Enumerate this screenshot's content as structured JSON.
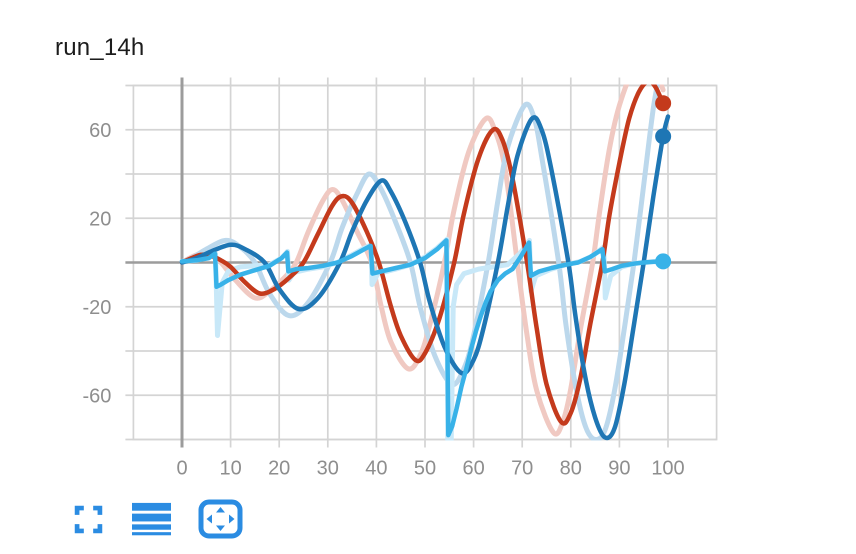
{
  "card": {
    "title": "run_14h",
    "background": "#ffffff"
  },
  "toolbar": {
    "icon_color": "#2b8ce2",
    "buttons": [
      {
        "label": "fullscreen",
        "icon": "fullscreen-icon"
      },
      {
        "label": "raw-data",
        "icon": "data-rows-icon"
      },
      {
        "label": "pan-zoom",
        "icon": "pan-arrows-icon"
      }
    ]
  },
  "chart_data": {
    "type": "line",
    "title": "run_14h",
    "xlabel": "",
    "ylabel": "",
    "x_range": [
      -10,
      110
    ],
    "y_range": [
      -80,
      80
    ],
    "x_ticks": [
      0,
      10,
      20,
      30,
      40,
      50,
      60,
      70,
      80,
      90,
      100
    ],
    "y_gridlines": [
      -80,
      -60,
      -40,
      -20,
      0,
      20,
      40,
      60,
      80
    ],
    "y_tick_labels": [
      {
        "value": 60,
        "label": "60"
      },
      {
        "value": 20,
        "label": "20"
      },
      {
        "value": -20,
        "label": "-20"
      },
      {
        "value": -60,
        "label": "-60"
      }
    ],
    "grid": true,
    "legend_position": "none",
    "styles": {
      "grid_color": "#d4d4d4",
      "axis_zero_color": "#9c9c9c",
      "label_color": "#8e8e8e",
      "label_size": 20
    },
    "series": [
      {
        "name": "red-raw",
        "role": "raw",
        "color": "#f0c9c2",
        "width": 5,
        "style": "smooth",
        "points": [
          [
            0,
            0
          ],
          [
            2,
            2.5
          ],
          [
            4,
            4
          ],
          [
            6,
            3
          ],
          [
            8,
            0
          ],
          [
            11,
            -8
          ],
          [
            15,
            -16
          ],
          [
            18,
            -13
          ],
          [
            21,
            -7
          ],
          [
            23.5,
            0
          ],
          [
            26,
            14
          ],
          [
            29,
            28
          ],
          [
            31,
            33
          ],
          [
            33,
            28
          ],
          [
            36,
            14
          ],
          [
            39,
            0
          ],
          [
            41,
            -20
          ],
          [
            43,
            -36
          ],
          [
            46.5,
            -48
          ],
          [
            49,
            -42
          ],
          [
            51,
            -28
          ],
          [
            54,
            0
          ],
          [
            56,
            24
          ],
          [
            59,
            50
          ],
          [
            62.5,
            65
          ],
          [
            64.5,
            59
          ],
          [
            66.5,
            42
          ],
          [
            69,
            0
          ],
          [
            71,
            -33
          ],
          [
            73,
            -58
          ],
          [
            76.5,
            -77
          ],
          [
            78.5,
            -71
          ],
          [
            80,
            -57
          ],
          [
            82,
            -30
          ],
          [
            84.5,
            0
          ],
          [
            86,
            24
          ],
          [
            88,
            52
          ],
          [
            90,
            71
          ],
          [
            93,
            88
          ],
          [
            95.5,
            93
          ],
          [
            97.5,
            86
          ],
          [
            99,
            78
          ]
        ]
      },
      {
        "name": "blue-raw",
        "role": "raw",
        "color": "#bcd8ec",
        "width": 5,
        "style": "smooth",
        "points": [
          [
            0,
            0
          ],
          [
            2,
            2
          ],
          [
            5,
            6
          ],
          [
            9,
            10
          ],
          [
            12,
            7
          ],
          [
            15,
            0
          ],
          [
            18,
            -14
          ],
          [
            22,
            -24
          ],
          [
            26,
            -18
          ],
          [
            30.5,
            0
          ],
          [
            33,
            16
          ],
          [
            36,
            31
          ],
          [
            38.5,
            40
          ],
          [
            41,
            33
          ],
          [
            44,
            18
          ],
          [
            47,
            0
          ],
          [
            49,
            -20
          ],
          [
            52,
            -42
          ],
          [
            55.5,
            -55
          ],
          [
            58,
            -48
          ],
          [
            60,
            -33
          ],
          [
            63,
            0
          ],
          [
            65,
            28
          ],
          [
            67,
            52
          ],
          [
            70.5,
            71
          ],
          [
            72.5,
            65
          ],
          [
            74,
            48
          ],
          [
            77.5,
            0
          ],
          [
            79,
            -28
          ],
          [
            81,
            -56
          ],
          [
            83,
            -74
          ],
          [
            85,
            -80
          ],
          [
            87,
            -76
          ],
          [
            89,
            -58
          ],
          [
            91,
            -30
          ],
          [
            93,
            0
          ],
          [
            95,
            35
          ],
          [
            97,
            70
          ],
          [
            98.5,
            88
          ]
        ]
      },
      {
        "name": "cyan-raw",
        "role": "raw",
        "color": "#c8e8f8",
        "width": 5,
        "style": "linear",
        "points": [
          [
            0,
            0.5
          ],
          [
            3,
            1
          ],
          [
            5.5,
            2.5
          ],
          [
            6.9,
            4
          ],
          [
            7.3,
            -33
          ],
          [
            8.3,
            -9
          ],
          [
            9.5,
            -4
          ],
          [
            12,
            -2
          ],
          [
            15,
            -1.5
          ],
          [
            18,
            -1
          ],
          [
            20.5,
            2
          ],
          [
            21.7,
            5
          ],
          [
            22,
            -8
          ],
          [
            23,
            -4.5
          ],
          [
            26,
            -3
          ],
          [
            29,
            -2
          ],
          [
            32,
            0
          ],
          [
            35,
            3.5
          ],
          [
            37.5,
            6.5
          ],
          [
            38.9,
            8
          ],
          [
            39.1,
            -10
          ],
          [
            40.3,
            -5
          ],
          [
            44,
            -3
          ],
          [
            47,
            -1
          ],
          [
            50,
            2.5
          ],
          [
            52.5,
            6.5
          ],
          [
            54.5,
            10.5
          ],
          [
            54.7,
            -81
          ],
          [
            55.4,
            -81
          ],
          [
            55.8,
            -20
          ],
          [
            56.5,
            -10
          ],
          [
            58,
            -5
          ],
          [
            61,
            -3
          ],
          [
            64,
            -2
          ],
          [
            67,
            -1
          ],
          [
            69.5,
            4
          ],
          [
            71.5,
            10
          ],
          [
            71.8,
            -13
          ],
          [
            72.8,
            -6
          ],
          [
            76,
            -3
          ],
          [
            79,
            -1
          ],
          [
            82,
            0.5
          ],
          [
            84.5,
            3
          ],
          [
            86.8,
            7
          ],
          [
            87.1,
            -16
          ],
          [
            88.2,
            -6
          ],
          [
            90.5,
            -2
          ],
          [
            93,
            -0.5
          ],
          [
            95,
            0
          ],
          [
            97,
            0.3
          ],
          [
            99,
            0.5
          ]
        ]
      },
      {
        "name": "red-smoothed",
        "role": "smoothed",
        "color": "#c43a1c",
        "width": 4.5,
        "style": "smooth",
        "end_marker": {
          "x": 99,
          "y": 72,
          "r": 8
        },
        "points": [
          [
            0,
            0
          ],
          [
            2,
            2
          ],
          [
            4,
            3.5
          ],
          [
            6,
            3
          ],
          [
            8,
            1
          ],
          [
            10,
            -2
          ],
          [
            13,
            -9
          ],
          [
            16,
            -14
          ],
          [
            19,
            -12
          ],
          [
            22,
            -7
          ],
          [
            25,
            0
          ],
          [
            28,
            13
          ],
          [
            31,
            26
          ],
          [
            33,
            30
          ],
          [
            35,
            27
          ],
          [
            38,
            14
          ],
          [
            40.5,
            0
          ],
          [
            43,
            -20
          ],
          [
            45,
            -33
          ],
          [
            48,
            -44
          ],
          [
            50,
            -41
          ],
          [
            53,
            -25
          ],
          [
            56,
            0
          ],
          [
            58,
            22
          ],
          [
            61,
            47
          ],
          [
            64,
            60
          ],
          [
            66,
            55
          ],
          [
            68,
            38
          ],
          [
            71,
            0
          ],
          [
            73,
            -30
          ],
          [
            75,
            -55
          ],
          [
            78,
            -72
          ],
          [
            80,
            -68
          ],
          [
            82,
            -52
          ],
          [
            84,
            -28
          ],
          [
            86.5,
            0
          ],
          [
            88,
            22
          ],
          [
            90,
            45
          ],
          [
            92,
            65
          ],
          [
            94,
            77
          ],
          [
            96,
            82
          ],
          [
            97.5,
            79
          ],
          [
            99,
            72
          ],
          [
            99.6,
            71
          ]
        ]
      },
      {
        "name": "blue-smoothed",
        "role": "smoothed",
        "color": "#1e76b4",
        "width": 4.5,
        "style": "smooth",
        "end_marker": {
          "x": 99,
          "y": 57,
          "r": 8
        },
        "points": [
          [
            0,
            0
          ],
          [
            3,
            2
          ],
          [
            6,
            5
          ],
          [
            10,
            8
          ],
          [
            13,
            6
          ],
          [
            17,
            0
          ],
          [
            20,
            -12
          ],
          [
            24,
            -21
          ],
          [
            28,
            -16
          ],
          [
            32.5,
            0
          ],
          [
            35,
            14
          ],
          [
            38,
            28
          ],
          [
            41,
            37
          ],
          [
            43,
            32
          ],
          [
            46,
            18
          ],
          [
            49,
            0
          ],
          [
            51,
            -18
          ],
          [
            54,
            -38
          ],
          [
            57.5,
            -50
          ],
          [
            60,
            -44
          ],
          [
            62,
            -30
          ],
          [
            65,
            0
          ],
          [
            67,
            25
          ],
          [
            69,
            48
          ],
          [
            72,
            65
          ],
          [
            74,
            60
          ],
          [
            76,
            42
          ],
          [
            79.5,
            0
          ],
          [
            81,
            -25
          ],
          [
            83,
            -52
          ],
          [
            85,
            -70
          ],
          [
            87,
            -79
          ],
          [
            89,
            -75
          ],
          [
            91,
            -55
          ],
          [
            93,
            -28
          ],
          [
            95,
            0
          ],
          [
            97,
            30
          ],
          [
            99,
            57
          ],
          [
            100,
            66
          ]
        ]
      },
      {
        "name": "cyan-smoothed",
        "role": "smoothed",
        "color": "#38b2e8",
        "width": 4.5,
        "style": "linear",
        "end_marker": {
          "x": 99,
          "y": 0.5,
          "r": 8
        },
        "points": [
          [
            0,
            0.5
          ],
          [
            3,
            1
          ],
          [
            5.5,
            2
          ],
          [
            6.8,
            4
          ],
          [
            7.1,
            -11
          ],
          [
            8,
            -10
          ],
          [
            9.5,
            -8
          ],
          [
            12,
            -5.5
          ],
          [
            15,
            -3.5
          ],
          [
            18,
            -1.5
          ],
          [
            20.5,
            2
          ],
          [
            21.6,
            4.5
          ],
          [
            21.9,
            -4
          ],
          [
            23.5,
            -3
          ],
          [
            26,
            -2.5
          ],
          [
            29,
            -1.5
          ],
          [
            32,
            0
          ],
          [
            35,
            3
          ],
          [
            37.5,
            6
          ],
          [
            38.8,
            7.5
          ],
          [
            39.2,
            -5
          ],
          [
            41,
            -4
          ],
          [
            44,
            -2.5
          ],
          [
            47,
            -1
          ],
          [
            50,
            2
          ],
          [
            52.5,
            6
          ],
          [
            54.4,
            10
          ],
          [
            54.8,
            -78
          ],
          [
            55.6,
            -74
          ],
          [
            56.5,
            -66
          ],
          [
            57.5,
            -56
          ],
          [
            58.5,
            -48
          ],
          [
            59.5,
            -39
          ],
          [
            60.5,
            -31
          ],
          [
            61.5,
            -24
          ],
          [
            62.5,
            -18
          ],
          [
            63.5,
            -13
          ],
          [
            65,
            -8
          ],
          [
            66.5,
            -5
          ],
          [
            68,
            -3
          ],
          [
            69.8,
            3
          ],
          [
            71.4,
            9
          ],
          [
            71.8,
            -6
          ],
          [
            73.5,
            -4
          ],
          [
            76,
            -2.5
          ],
          [
            79,
            -1
          ],
          [
            81.5,
            0
          ],
          [
            84,
            2.5
          ],
          [
            86.5,
            6
          ],
          [
            87,
            -4
          ],
          [
            88.5,
            -3
          ],
          [
            90.5,
            -1.5
          ],
          [
            93,
            -0.5
          ],
          [
            95,
            0
          ],
          [
            97,
            0.3
          ],
          [
            100,
            0.6
          ]
        ]
      }
    ]
  }
}
